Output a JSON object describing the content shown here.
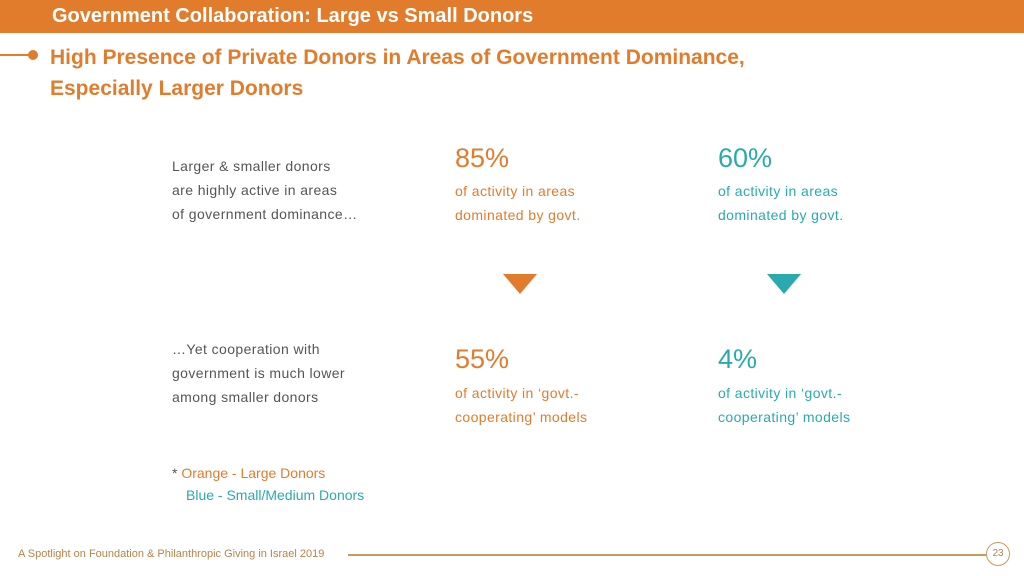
{
  "header": {
    "title": "Government Collaboration: Large vs Small Donors"
  },
  "subtitle": "High Presence of Private Donors in Areas of Government Dominance, Especially Larger Donors",
  "rows": [
    {
      "label": [
        "Larger & smaller donors",
        "are highly active in areas",
        "of government dominance…"
      ],
      "large": {
        "value": "85%",
        "desc": [
          "of activity in areas",
          "dominated by govt."
        ]
      },
      "small": {
        "value": "60%",
        "desc": [
          "of activity in areas",
          "dominated by govt."
        ]
      }
    },
    {
      "label": [
        "…Yet cooperation with",
        "government is much lower",
        "among smaller donors"
      ],
      "large": {
        "value": "55%",
        "desc": [
          "of activity in ‘govt.-",
          "cooperating’ models"
        ]
      },
      "small": {
        "value": "4%",
        "desc": [
          "of activity in ‘govt.-",
          "cooperating’ models"
        ]
      }
    }
  ],
  "legend": {
    "star": "*",
    "large": "Orange - Large Donors",
    "small": "Blue - Small/Medium Donors"
  },
  "footer": {
    "text": "A Spotlight on Foundation & Philanthropic Giving in Israel 2019",
    "page": "23"
  },
  "colors": {
    "large": "#E17C2D",
    "small": "#2AAAAE"
  }
}
